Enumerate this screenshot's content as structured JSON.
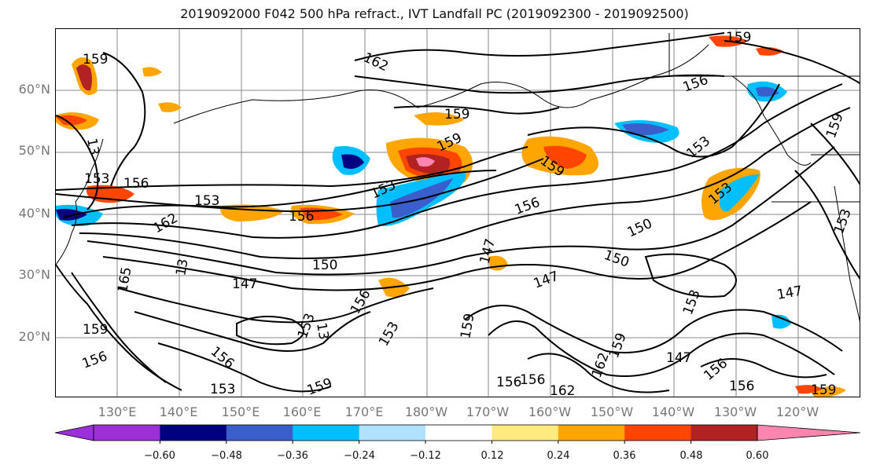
{
  "title": "2019092000 F042 500 hPa refract., IVT Landfall PC (2019092300 - 2019092500)",
  "lat_labels": [
    "60°N",
    "50°N",
    "40°N",
    "30°N",
    "20°N"
  ],
  "lon_labels": [
    "130°E",
    "140°E",
    "150°E",
    "160°E",
    "170°E",
    "180°W",
    "170°W",
    "160°W",
    "150°W",
    "140°W",
    "130°W",
    "120°W"
  ],
  "colorbar": {
    "colors": [
      "#9b30d9",
      "#000080",
      "#3a5fcd",
      "#00bfff",
      "#b0e2ff",
      "#ffffff",
      "#ffea80",
      "#ffa500",
      "#ff4500",
      "#b22222",
      "#ff85b0"
    ],
    "tick_labels": [
      "−0.60",
      "−0.48",
      "−0.36",
      "−0.24",
      "−0.12",
      "0.12",
      "0.24",
      "0.36",
      "0.48",
      "0.60"
    ]
  },
  "contour_labels": [
    "159",
    "162",
    "159",
    "156",
    "153",
    "156",
    "153",
    "156",
    "159",
    "159",
    "159",
    "153",
    "153",
    "156",
    "150",
    "162",
    "150",
    "147",
    "147",
    "150",
    "165",
    "159",
    "156",
    "153",
    "147",
    "153",
    "159",
    "156",
    "153",
    "147",
    "153",
    "147",
    "156",
    "156",
    "162",
    "159",
    "156",
    "153",
    "159",
    "159",
    "156",
    "156",
    "153",
    "159",
    "162",
    "13",
    "13",
    "13"
  ],
  "colors": {
    "contour": "#000000",
    "grid": "#888888",
    "coast": "#000000"
  }
}
